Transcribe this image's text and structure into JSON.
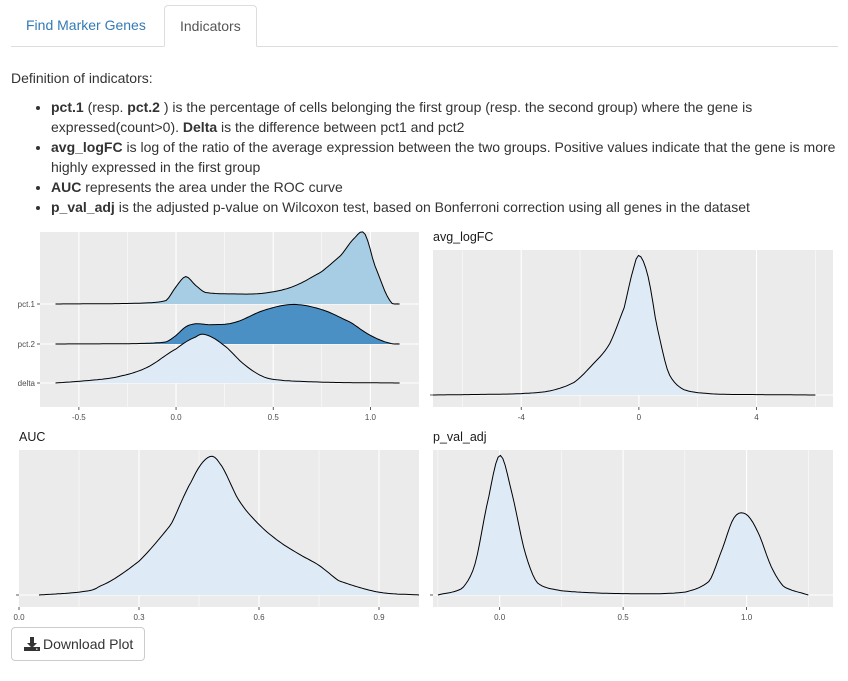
{
  "tabs": [
    {
      "label": "Find Marker Genes",
      "active": false
    },
    {
      "label": "Indicators",
      "active": true
    }
  ],
  "definition_title": "Definition of indicators:",
  "definitions": {
    "pct": {
      "pct1": "pct.1",
      "resp_prefix": " (resp. ",
      "pct2": "pct.2",
      "text_a": " ) is the percentage of cells belonging the first group (resp. the second group) where the gene is expressed(count>0). ",
      "delta": "Delta",
      "text_b": " is the difference between pct1 and pct2"
    },
    "logfc": {
      "term": "avg_logFC",
      "text": " is log of the ratio of the average expression between the two groups. Positive values indicate that the gene is more highly expressed in the first group"
    },
    "auc": {
      "term": "AUC",
      "text": " represents the area under the ROC curve"
    },
    "pval": {
      "term": "p_val_adj",
      "text": " is the adjusted p-value on Wilcoxon test, based on Bonferroni correction using all genes in the dataset"
    }
  },
  "download_button": {
    "label": "Download Plot",
    "icon": "download-icon"
  },
  "colors": {
    "panel_bg": "#ebebeb",
    "pct1_fill": "#a6cde3",
    "pct2_fill": "#4a90c4",
    "delta_fill": "#deebf7",
    "light_fill": "#deebf7",
    "link": "#337ab7"
  },
  "chart_data": [
    {
      "type": "area",
      "subtype": "ridgeline-density",
      "title": "",
      "xlabel": "",
      "ylabel": "",
      "xlim": [
        -0.7,
        1.25
      ],
      "x_ticks": [
        -0.5,
        0.0,
        0.5,
        1.0
      ],
      "x_tick_labels": [
        "-0.5",
        "0.0",
        "0.5",
        "1.0"
      ],
      "grid": true,
      "series": [
        {
          "name": "pct.1",
          "fill": "#a6cde3",
          "x": [
            -0.62,
            -0.2,
            -0.05,
            0.0,
            0.05,
            0.1,
            0.15,
            0.3,
            0.45,
            0.6,
            0.75,
            0.85,
            0.92,
            0.97,
            1.02,
            1.1,
            1.15
          ],
          "y": [
            0,
            0.01,
            0.05,
            0.24,
            0.38,
            0.26,
            0.16,
            0.14,
            0.15,
            0.24,
            0.45,
            0.68,
            0.92,
            0.98,
            0.55,
            0.05,
            0
          ]
        },
        {
          "name": "pct.2",
          "fill": "#4a90c4",
          "x": [
            -0.62,
            -0.2,
            -0.05,
            0.0,
            0.05,
            0.1,
            0.18,
            0.3,
            0.45,
            0.6,
            0.75,
            0.9,
            1.0,
            1.1,
            1.15
          ],
          "y": [
            0,
            0.01,
            0.05,
            0.2,
            0.4,
            0.47,
            0.45,
            0.5,
            0.78,
            0.92,
            0.8,
            0.5,
            0.2,
            0.02,
            0
          ]
        },
        {
          "name": "delta",
          "fill": "#deebf7",
          "x": [
            -0.62,
            -0.45,
            -0.3,
            -0.15,
            0.0,
            0.1,
            0.15,
            0.25,
            0.35,
            0.45,
            0.55,
            0.8,
            1.15
          ],
          "y": [
            0,
            0.04,
            0.1,
            0.25,
            0.55,
            0.74,
            0.78,
            0.6,
            0.3,
            0.1,
            0.04,
            0.01,
            0
          ]
        }
      ]
    },
    {
      "type": "area",
      "subtype": "density",
      "title": "avg_logFC",
      "xlabel": "",
      "ylabel": "",
      "xlim": [
        -7,
        6.6
      ],
      "x_ticks": [
        -4,
        0,
        4
      ],
      "x_tick_labels": [
        "-4",
        "0",
        "4"
      ],
      "grid": true,
      "series": [
        {
          "name": "",
          "fill": "#deebf7",
          "x": [
            -7,
            -5,
            -4,
            -3,
            -2.2,
            -1.6,
            -1.0,
            -0.5,
            -0.2,
            0,
            0.3,
            0.6,
            1.0,
            1.5,
            2.5,
            4,
            6
          ],
          "y": [
            0,
            0.005,
            0.01,
            0.03,
            0.09,
            0.21,
            0.36,
            0.62,
            0.88,
            0.99,
            0.85,
            0.5,
            0.16,
            0.04,
            0.008,
            0.003,
            0
          ]
        }
      ]
    },
    {
      "type": "area",
      "subtype": "density",
      "title": "AUC",
      "xlabel": "",
      "ylabel": "",
      "xlim": [
        0.0,
        1.0
      ],
      "x_ticks": [
        0.0,
        0.3,
        0.6,
        0.9
      ],
      "x_tick_labels": [
        "0.0",
        "0.3",
        "0.6",
        "0.9"
      ],
      "grid": true,
      "series": [
        {
          "name": "",
          "fill": "#deebf7",
          "x": [
            0.05,
            0.15,
            0.2,
            0.3,
            0.38,
            0.43,
            0.47,
            0.5,
            0.55,
            0.6,
            0.65,
            0.7,
            0.75,
            0.8,
            0.9,
            1.0
          ],
          "y": [
            0,
            0.02,
            0.06,
            0.24,
            0.5,
            0.8,
            0.97,
            0.94,
            0.67,
            0.5,
            0.38,
            0.29,
            0.21,
            0.1,
            0.02,
            0
          ]
        }
      ]
    },
    {
      "type": "area",
      "subtype": "density",
      "title": "p_val_adj",
      "xlabel": "",
      "ylabel": "",
      "xlim": [
        -0.27,
        1.35
      ],
      "x_ticks": [
        0.0,
        0.5,
        1.0
      ],
      "x_tick_labels": [
        "0.0",
        "0.5",
        "1.0"
      ],
      "grid": true,
      "series": [
        {
          "name": "",
          "fill": "#deebf7",
          "x": [
            -0.25,
            -0.15,
            -0.1,
            -0.05,
            0.0,
            0.05,
            0.1,
            0.15,
            0.25,
            0.5,
            0.75,
            0.85,
            0.9,
            0.95,
            1.0,
            1.05,
            1.1,
            1.15,
            1.25
          ],
          "y": [
            0,
            0.05,
            0.22,
            0.65,
            0.99,
            0.72,
            0.32,
            0.09,
            0.03,
            0.01,
            0.02,
            0.1,
            0.32,
            0.55,
            0.57,
            0.43,
            0.2,
            0.06,
            0
          ]
        }
      ]
    }
  ]
}
